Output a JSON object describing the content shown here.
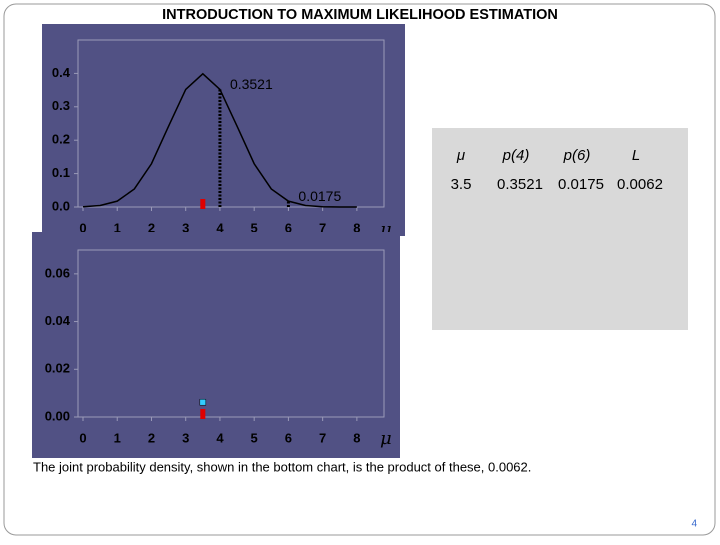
{
  "title": "INTRODUCTION TO MAXIMUM LIKELIHOOD ESTIMATION",
  "chart_data": [
    {
      "type": "line",
      "x": [
        0,
        0.5,
        1,
        1.5,
        2,
        2.5,
        3,
        3.5,
        4,
        4.5,
        5,
        5.5,
        6,
        6.5,
        7,
        7.5,
        8
      ],
      "series": [
        {
          "color": "#000000",
          "values": [
            0.0009,
            0.0044,
            0.0175,
            0.054,
            0.1295,
            0.242,
            0.3521,
            0.3989,
            0.3521,
            0.242,
            0.1295,
            0.054,
            0.0175,
            0.0044,
            0.0009,
            0.0001,
            0
          ]
        }
      ],
      "markers": [
        {
          "x": 4,
          "value": 0.3521
        },
        {
          "x": 6,
          "value": 0.0175
        }
      ],
      "mu": 3.5,
      "xlim": [
        0,
        8.5
      ],
      "ylim": [
        0,
        0.5
      ],
      "xticks": [
        0,
        1,
        2,
        3,
        4,
        5,
        6,
        7,
        8
      ],
      "yticks": [
        {
          "value": 0,
          "label": "0.0"
        },
        0.1,
        0.2,
        0.3,
        0.4
      ],
      "xlabel": "μ"
    },
    {
      "type": "scatter",
      "x": [
        3.5
      ],
      "values": [
        0.0062
      ],
      "color": "#33ccff",
      "mu": 3.5,
      "xlim": [
        0,
        8.5
      ],
      "ylim": [
        0,
        0.07
      ],
      "xticks": [
        0,
        1,
        2,
        3,
        4,
        5,
        6,
        7,
        8
      ],
      "yticks": [
        {
          "value": 0,
          "label": "0.00"
        },
        0.02,
        0.04,
        0.06
      ],
      "xlabel": "μ"
    }
  ],
  "table": {
    "header": [
      "μ",
      "p(4)",
      "p(6)",
      "L"
    ],
    "rows": [
      [
        "3.5",
        "0.3521",
        "0.0175",
        "0.0062"
      ]
    ]
  },
  "caption": "The joint probability density, shown in the bottom chart, is the product of these, 0.0062.",
  "page_number": "4"
}
